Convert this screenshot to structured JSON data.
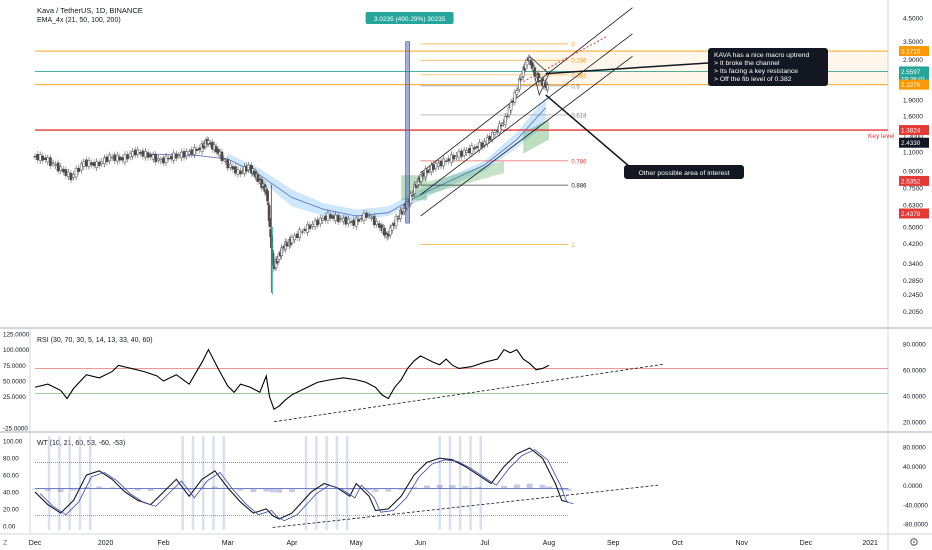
{
  "header": {
    "symbol_line": "Kava / TetherUS, 1D, BINANCE",
    "indicator_line": "EMA_4x (21, 50, 100, 200)"
  },
  "colors": {
    "up": "#4a4a4a",
    "down": "#7a7a7a",
    "red": "#e53935",
    "orange": "#ff9800",
    "teal": "#26a69a",
    "green": "#43a047",
    "cloud": "#90caf9",
    "rsi_line": "#000000",
    "wt_band": "#c5cae9"
  },
  "chart_data": [
    {
      "type": "line",
      "title": "Kava / TetherUS, 1D, BINANCE",
      "scale": "log",
      "ylim": [
        0.18,
        5.2
      ],
      "y_ticks": [
        "4.5000",
        "3.5000",
        "2.9000",
        "2.3000",
        "1.9000",
        "1.6000",
        "1.3000",
        "1.1000",
        "0.9000",
        "0.7500",
        "0.6300",
        "0.5000",
        "0.4200",
        "0.3400",
        "0.2850",
        "0.2450",
        "0.2050"
      ],
      "x_ticks": [
        "Dec",
        "2020",
        "Feb",
        "Mar",
        "Apr",
        "May",
        "Jun",
        "Jul",
        "Aug",
        "Sep",
        "Oct",
        "Nov",
        "Dec",
        "2021"
      ],
      "x_tick_pos": [
        0,
        1.1,
        2.0,
        3.0,
        4.0,
        5.0,
        6.0,
        7.0,
        8.0,
        9.0,
        10.0,
        11.0,
        12.0,
        13.0
      ],
      "series": [
        {
          "name": "Kava / TetherUS",
          "points": [
            [
              0.0,
              1.05
            ],
            [
              0.2,
              1.02
            ],
            [
              0.4,
              0.93
            ],
            [
              0.6,
              0.84
            ],
            [
              0.8,
              0.98
            ],
            [
              1.0,
              0.96
            ],
            [
              1.2,
              1.04
            ],
            [
              1.4,
              1.02
            ],
            [
              1.6,
              1.1
            ],
            [
              1.8,
              1.06
            ],
            [
              2.0,
              1.0
            ],
            [
              2.2,
              1.05
            ],
            [
              2.4,
              1.08
            ],
            [
              2.6,
              1.14
            ],
            [
              2.7,
              1.23
            ],
            [
              2.85,
              1.12
            ],
            [
              3.0,
              0.98
            ],
            [
              3.2,
              0.88
            ],
            [
              3.35,
              0.94
            ],
            [
              3.45,
              0.86
            ],
            [
              3.55,
              0.78
            ],
            [
              3.62,
              0.72
            ],
            [
              3.68,
              0.44
            ],
            [
              3.72,
              0.32
            ],
            [
              3.8,
              0.36
            ],
            [
              3.9,
              0.41
            ],
            [
              4.0,
              0.43
            ],
            [
              4.2,
              0.48
            ],
            [
              4.4,
              0.52
            ],
            [
              4.6,
              0.56
            ],
            [
              4.8,
              0.54
            ],
            [
              5.0,
              0.52
            ],
            [
              5.2,
              0.57
            ],
            [
              5.4,
              0.5
            ],
            [
              5.5,
              0.45
            ],
            [
              5.65,
              0.54
            ],
            [
              5.75,
              0.6
            ],
            [
              5.85,
              0.66
            ],
            [
              5.95,
              0.78
            ],
            [
              6.05,
              0.86
            ],
            [
              6.2,
              0.93
            ],
            [
              6.4,
              0.99
            ],
            [
              6.6,
              1.06
            ],
            [
              6.8,
              1.12
            ],
            [
              7.0,
              1.19
            ],
            [
              7.2,
              1.35
            ],
            [
              7.35,
              1.55
            ],
            [
              7.5,
              2.0
            ],
            [
              7.6,
              2.5
            ],
            [
              7.7,
              2.95
            ],
            [
              7.8,
              2.5
            ],
            [
              7.9,
              2.3
            ],
            [
              8.0,
              2.15
            ]
          ],
          "color": "#4a4a4a"
        }
      ],
      "horizontal_levels": [
        {
          "label": "3.1716",
          "value": 3.1716,
          "color": "#ff9800"
        },
        {
          "label": "2.5597",
          "value": 2.5597,
          "color": "#26a69a"
        },
        {
          "label": "2.2276",
          "value": 2.2276,
          "color": "#ff9800"
        },
        {
          "label": "1.3824",
          "value": 1.3824,
          "color": "#e53935"
        }
      ],
      "axis_badges": [
        {
          "label": "3.1716",
          "value": 3.1716,
          "color": "#ff9800"
        },
        {
          "label": "2.5597",
          "value": 2.5597,
          "color": "#26a69a"
        },
        {
          "label": "19:26:01",
          "value": 2.36,
          "color": "#26a69a"
        },
        {
          "label": "2.2276",
          "value": 2.2276,
          "color": "#ff9800"
        },
        {
          "label": "1.3824",
          "value": 1.3824,
          "color": "#e53935"
        },
        {
          "label": "2.4330",
          "value": 1.21,
          "color": "#131722"
        },
        {
          "label": "2.5352",
          "value": 0.81,
          "color": "#e53935"
        },
        {
          "label": "2.4378",
          "value": 0.575,
          "color": "#e53935"
        }
      ],
      "fib_levels": [
        {
          "label": "0",
          "value": 3.42
        },
        {
          "label": "0.236",
          "value": 2.88
        },
        {
          "label": "0.382",
          "value": 2.47
        },
        {
          "label": "0.5",
          "value": 2.2
        },
        {
          "label": "0.618",
          "value": 1.62
        },
        {
          "label": "0.786",
          "value": 1.0
        },
        {
          "label": "0.886",
          "value": 0.775
        },
        {
          "label": "1",
          "value": 0.415
        }
      ],
      "annotations": {
        "measure_label": "3.0235 (490.29%) 30235",
        "key_level_label": "Key level",
        "callout_text": [
          "KAVA has a nice macro uptrend",
          "> It broke the channel",
          "> Its facing a key resistance",
          "> Off the fib level of 0.382"
        ],
        "interest_label": "Other possible area of interest"
      }
    },
    {
      "type": "line",
      "title": "RSI (30, 70, 30, 5, 14, 13, 33, 40, 60)",
      "ylim": [
        -25,
        125
      ],
      "left_ticks": [
        "125.0000",
        "100.0000",
        "75.0000",
        "50.0000",
        "25.0000",
        "-25.0000"
      ],
      "right_ticks": [
        "80.0000",
        "60.0000",
        "40.0000",
        "20.0000"
      ],
      "levels": {
        "upper": 70,
        "lower": 30
      },
      "series": [
        {
          "name": "RSI",
          "points": [
            [
              0.0,
              40
            ],
            [
              0.2,
              45
            ],
            [
              0.4,
              35
            ],
            [
              0.5,
              22
            ],
            [
              0.6,
              38
            ],
            [
              0.8,
              60
            ],
            [
              1.0,
              55
            ],
            [
              1.2,
              65
            ],
            [
              1.3,
              75
            ],
            [
              1.5,
              70
            ],
            [
              1.7,
              65
            ],
            [
              1.9,
              58
            ],
            [
              2.0,
              50
            ],
            [
              2.2,
              60
            ],
            [
              2.4,
              45
            ],
            [
              2.6,
              80
            ],
            [
              2.7,
              100
            ],
            [
              2.85,
              70
            ],
            [
              3.0,
              42
            ],
            [
              3.1,
              32
            ],
            [
              3.2,
              45
            ],
            [
              3.35,
              40
            ],
            [
              3.5,
              32
            ],
            [
              3.6,
              58
            ],
            [
              3.65,
              25
            ],
            [
              3.72,
              5
            ],
            [
              3.8,
              10
            ],
            [
              3.9,
              20
            ],
            [
              4.0,
              28
            ],
            [
              4.2,
              38
            ],
            [
              4.4,
              48
            ],
            [
              4.6,
              52
            ],
            [
              4.8,
              55
            ],
            [
              5.0,
              52
            ],
            [
              5.15,
              48
            ],
            [
              5.3,
              40
            ],
            [
              5.4,
              28
            ],
            [
              5.5,
              22
            ],
            [
              5.6,
              40
            ],
            [
              5.7,
              52
            ],
            [
              5.8,
              70
            ],
            [
              5.9,
              82
            ],
            [
              6.0,
              90
            ],
            [
              6.1,
              85
            ],
            [
              6.2,
              80
            ],
            [
              6.3,
              76
            ],
            [
              6.4,
              85
            ],
            [
              6.5,
              75
            ],
            [
              6.6,
              70
            ],
            [
              6.8,
              73
            ],
            [
              7.0,
              80
            ],
            [
              7.2,
              85
            ],
            [
              7.3,
              100
            ],
            [
              7.4,
              95
            ],
            [
              7.5,
              100
            ],
            [
              7.6,
              85
            ],
            [
              7.7,
              78
            ],
            [
              7.8,
              68
            ],
            [
              7.9,
              70
            ],
            [
              8.0,
              75
            ]
          ]
        }
      ],
      "trendline": [
        [
          3.72,
          -15
        ],
        [
          9.8,
          77
        ]
      ]
    },
    {
      "type": "line",
      "title": "WT (10, 21, 60, 53, -60, -53)",
      "ylim": [
        -5,
        105
      ],
      "left_ticks": [
        "100.00",
        "80.00",
        "60.00",
        "40.00",
        "20.00",
        "0.00"
      ],
      "right_ticks": [
        "80.0000",
        "40.0000",
        "0.0000",
        "-40.0000",
        "-80.0000"
      ],
      "levels": {
        "upper": 75,
        "lower": 12
      },
      "series": [
        {
          "name": "WT",
          "points": [
            [
              0.0,
              40
            ],
            [
              0.2,
              25
            ],
            [
              0.4,
              15
            ],
            [
              0.6,
              30
            ],
            [
              0.8,
              60
            ],
            [
              1.0,
              65
            ],
            [
              1.2,
              55
            ],
            [
              1.4,
              40
            ],
            [
              1.6,
              30
            ],
            [
              1.8,
              25
            ],
            [
              2.0,
              40
            ],
            [
              2.2,
              55
            ],
            [
              2.4,
              35
            ],
            [
              2.6,
              55
            ],
            [
              2.8,
              65
            ],
            [
              3.0,
              45
            ],
            [
              3.2,
              28
            ],
            [
              3.4,
              15
            ],
            [
              3.6,
              20
            ],
            [
              3.7,
              12
            ],
            [
              3.8,
              8
            ],
            [
              4.0,
              15
            ],
            [
              4.3,
              40
            ],
            [
              4.5,
              50
            ],
            [
              4.7,
              45
            ],
            [
              4.9,
              35
            ],
            [
              5.0,
              50
            ],
            [
              5.2,
              35
            ],
            [
              5.3,
              18
            ],
            [
              5.5,
              20
            ],
            [
              5.7,
              35
            ],
            [
              5.9,
              60
            ],
            [
              6.1,
              75
            ],
            [
              6.3,
              80
            ],
            [
              6.5,
              78
            ],
            [
              6.7,
              70
            ],
            [
              6.9,
              60
            ],
            [
              7.1,
              50
            ],
            [
              7.3,
              70
            ],
            [
              7.5,
              85
            ],
            [
              7.7,
              92
            ],
            [
              7.9,
              80
            ],
            [
              8.0,
              65
            ],
            [
              8.1,
              50
            ],
            [
              8.2,
              30
            ],
            [
              8.3,
              28
            ]
          ]
        }
      ],
      "trendline": [
        [
          3.7,
          -2
        ],
        [
          9.7,
          48
        ]
      ]
    }
  ],
  "footer": {
    "left_marker": "Z",
    "gear": "gear-icon"
  }
}
